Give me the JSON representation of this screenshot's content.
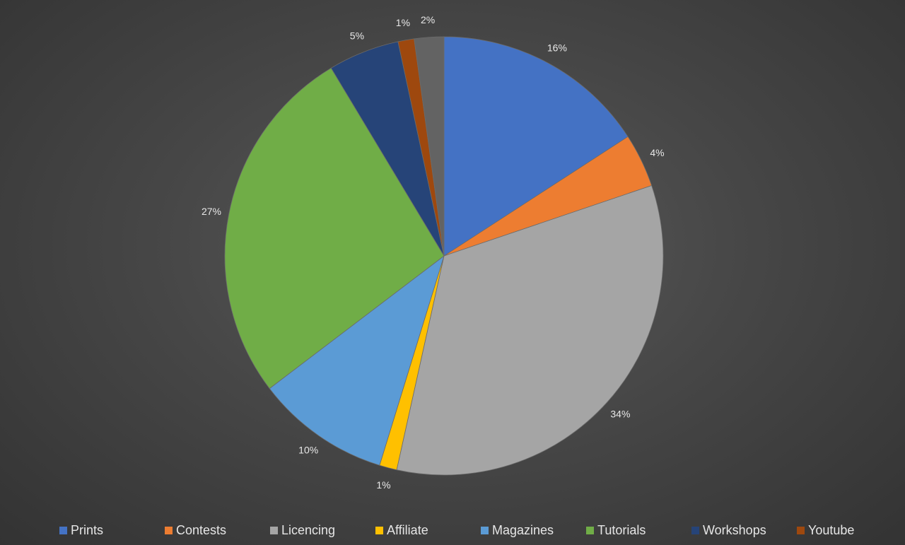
{
  "chart_data": {
    "type": "pie",
    "title": "",
    "slices": [
      {
        "name": "Prints",
        "value": 16,
        "label": "16%",
        "color": "#4472C4"
      },
      {
        "name": "Contests",
        "value": 4,
        "label": "4%",
        "color": "#ED7D31"
      },
      {
        "name": "Licencing",
        "value": 34,
        "label": "34%",
        "color": "#A5A5A5"
      },
      {
        "name": "Affiliate",
        "value": 1.3,
        "label": "1%",
        "color": "#FFC000"
      },
      {
        "name": "Magazines",
        "value": 10,
        "label": "10%",
        "color": "#5B9BD5"
      },
      {
        "name": "Tutorials",
        "value": 27,
        "label": "27%",
        "color": "#70AD47"
      },
      {
        "name": "Workshops",
        "value": 5.3,
        "label": "5%",
        "color": "#264478"
      },
      {
        "name": "Youtube",
        "value": 1.2,
        "label": "1%",
        "color": "#9E480E"
      },
      {
        "name": "",
        "value": 2.2,
        "label": "2%",
        "color": "#636363"
      }
    ],
    "legend": {
      "placement": "bottom",
      "entries": [
        "Prints",
        "Contests",
        "Licencing",
        "Affiliate",
        "Magazines",
        "Tutorials",
        "Workshops",
        "Youtube"
      ]
    }
  }
}
